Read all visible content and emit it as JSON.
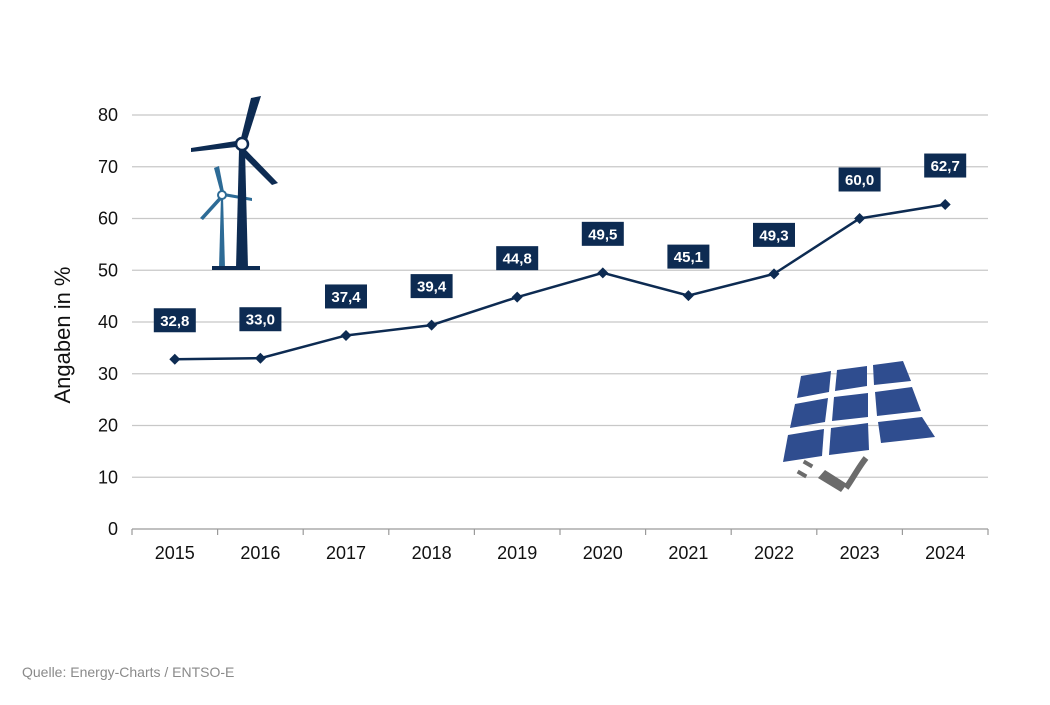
{
  "source_note": "Quelle: Energy-Charts / ENTSO-E",
  "colors": {
    "line": "#0d2b52",
    "label_bg": "#0d2b52",
    "label_text": "#ffffff",
    "grid": "#c8c8c8",
    "axis_text": "#111111",
    "turbine_dark": "#0d2b52",
    "turbine_light": "#2d6b96",
    "panel_blue": "#2f4d8f",
    "plug_gray": "#6b6b6b"
  },
  "icons": {
    "wind": "wind-turbines-icon",
    "solar": "solar-panel-plug-icon"
  },
  "chart_data": {
    "type": "line",
    "title": "",
    "xlabel": "",
    "ylabel": "Angaben in %",
    "categories": [
      "2015",
      "2016",
      "2017",
      "2018",
      "2019",
      "2020",
      "2021",
      "2022",
      "2023",
      "2024"
    ],
    "values": [
      32.8,
      33.0,
      37.4,
      39.4,
      44.8,
      49.5,
      45.1,
      49.3,
      60.0,
      62.7
    ],
    "value_labels": [
      "32,8",
      "33,0",
      "37,4",
      "39,4",
      "44,8",
      "49,5",
      "45,1",
      "49,3",
      "60,0",
      "62,7"
    ],
    "ylim": [
      0,
      80
    ],
    "yticks": [
      0,
      10,
      20,
      30,
      40,
      50,
      60,
      70,
      80
    ],
    "grid": true,
    "legend": "none"
  }
}
